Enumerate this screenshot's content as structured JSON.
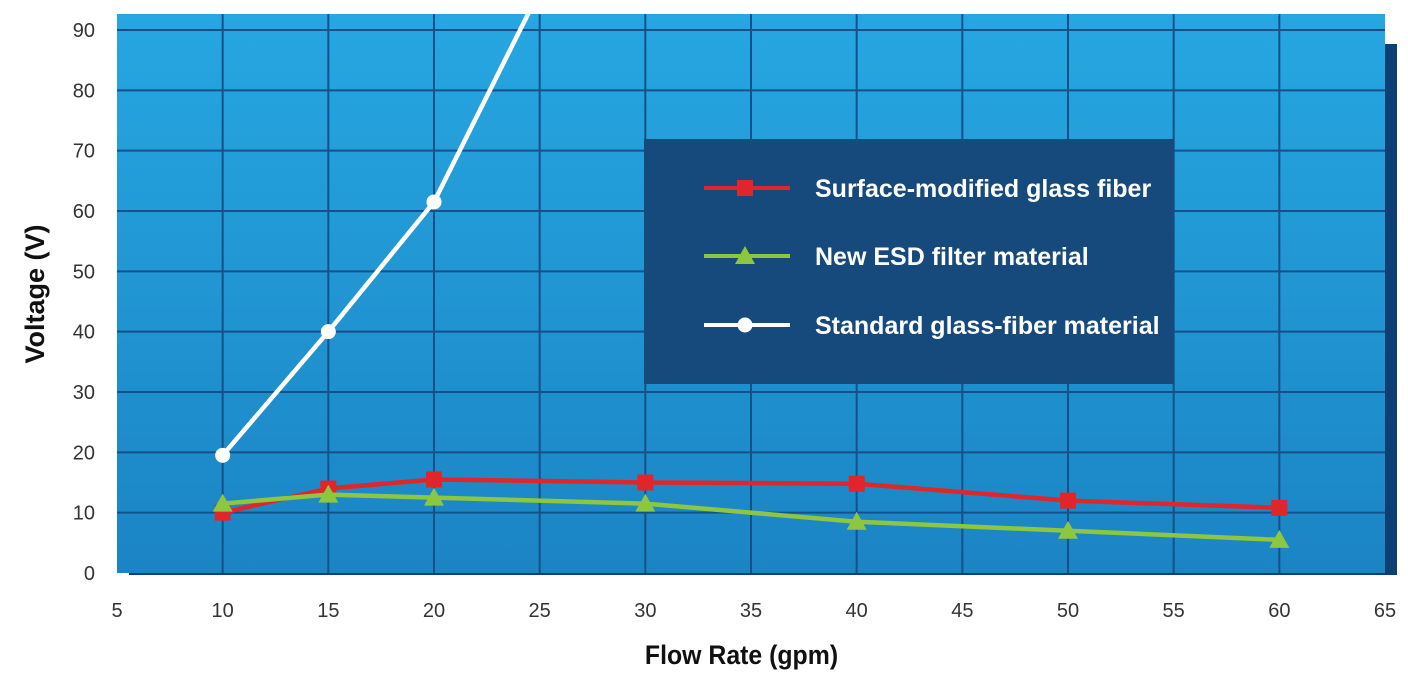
{
  "chart_data": {
    "type": "line",
    "title": "",
    "xlabel": "Flow Rate (gpm)",
    "ylabel": "Voltage (V)",
    "xlim": [
      5,
      65
    ],
    "ylim": [
      0,
      90
    ],
    "x_ticks": [
      "5",
      "10",
      "15",
      "20",
      "25",
      "30",
      "35",
      "40",
      "45",
      "50",
      "55",
      "60",
      "65"
    ],
    "y_ticks": [
      "0",
      "10",
      "20",
      "30",
      "40",
      "50",
      "60",
      "70",
      "80",
      "90"
    ],
    "grid": true,
    "legend_position": "right-center",
    "background_color": "#1f8fcc",
    "series": [
      {
        "name": "Surface-modified glass fiber",
        "color": "#e0262a",
        "marker": "square",
        "x": [
          10,
          15,
          20,
          30,
          40,
          50,
          60
        ],
        "y": [
          10,
          14,
          15.5,
          15,
          14.8,
          12,
          10.8
        ]
      },
      {
        "name": "New ESD filter material",
        "color": "#8dc63f",
        "marker": "triangle",
        "x": [
          10,
          15,
          20,
          30,
          40,
          50,
          60
        ],
        "y": [
          11.5,
          13,
          12.5,
          11.5,
          8.5,
          7,
          5.5
        ]
      },
      {
        "name": "Standard glass-fiber material",
        "color": "#ffffff",
        "marker": "circle",
        "x": [
          10,
          15,
          20,
          25.5
        ],
        "y": [
          19.5,
          40,
          61.5,
          100
        ]
      }
    ]
  }
}
